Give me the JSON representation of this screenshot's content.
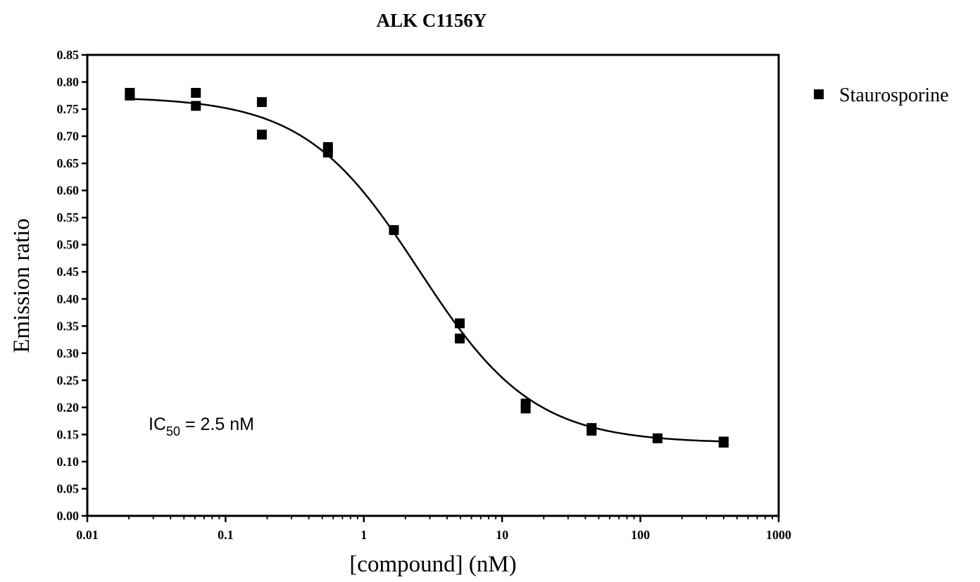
{
  "chart_data": {
    "type": "scatter",
    "title": "ALK C1156Y",
    "xlabel": "[compound] (nM)",
    "ylabel": "Emission ratio",
    "xscale": "log",
    "xlim": [
      0.01,
      1000
    ],
    "ylim": [
      0.0,
      0.85
    ],
    "grid": false,
    "legend_position": "top-right outside",
    "x_tick_labels": [
      "0.01",
      "0.1",
      "1",
      "10",
      "100",
      "1000"
    ],
    "y_tick_labels": [
      "0.00",
      "0.05",
      "0.10",
      "0.15",
      "0.20",
      "0.25",
      "0.30",
      "0.35",
      "0.40",
      "0.45",
      "0.50",
      "0.55",
      "0.60",
      "0.65",
      "0.70",
      "0.75",
      "0.80",
      "0.85"
    ],
    "series": [
      {
        "name": "Staurosporine",
        "color": "#000000",
        "marker": "square",
        "points": [
          {
            "x": 0.0203,
            "y": 0.78
          },
          {
            "x": 0.0203,
            "y": 0.775
          },
          {
            "x": 0.061,
            "y": 0.78
          },
          {
            "x": 0.061,
            "y": 0.756
          },
          {
            "x": 0.183,
            "y": 0.763
          },
          {
            "x": 0.183,
            "y": 0.703
          },
          {
            "x": 0.55,
            "y": 0.68
          },
          {
            "x": 0.55,
            "y": 0.67
          },
          {
            "x": 1.65,
            "y": 0.527
          },
          {
            "x": 4.94,
            "y": 0.355
          },
          {
            "x": 4.94,
            "y": 0.327
          },
          {
            "x": 14.8,
            "y": 0.207
          },
          {
            "x": 14.8,
            "y": 0.198
          },
          {
            "x": 44.4,
            "y": 0.162
          },
          {
            "x": 44.4,
            "y": 0.157
          },
          {
            "x": 133,
            "y": 0.143
          },
          {
            "x": 400,
            "y": 0.137
          },
          {
            "x": 400,
            "y": 0.135
          }
        ]
      }
    ],
    "fit_curve": {
      "model": "sigmoidal dose-response",
      "top": 0.773,
      "bottom": 0.134,
      "ic50": 2.5,
      "hill": 1.05,
      "x_range": [
        0.02,
        400
      ]
    },
    "annotation": {
      "prefix": "IC",
      "subscript": "50",
      "text": " = 2.5 nM"
    }
  }
}
